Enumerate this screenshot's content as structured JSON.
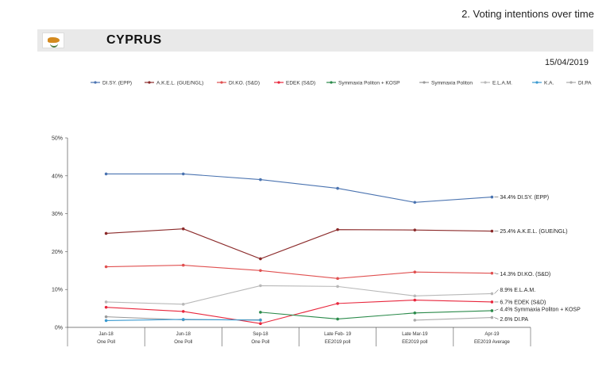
{
  "header": {
    "section_title": "2. Voting intentions over time"
  },
  "country": {
    "name": "CYPRUS",
    "flag_icon": "cyprus-flag-icon"
  },
  "date": "15/04/2019",
  "chart_data": {
    "type": "line",
    "categories": [
      [
        "Jan-18",
        "One Poll"
      ],
      [
        "Jun-18",
        "One Poll"
      ],
      [
        "Sep-18",
        "One Poll"
      ],
      [
        "Late Feb- 19",
        "EE2019 poll"
      ],
      [
        "Late Mar-19",
        "EE2019 poll"
      ],
      [
        "Apr-19",
        "EE2019 Average"
      ]
    ],
    "ylim": [
      0,
      50
    ],
    "yticks": [
      "0%",
      "10%",
      "20%",
      "30%",
      "40%",
      "50%"
    ],
    "series": [
      {
        "name": "DI.SY. (EPP)",
        "color": "#4a73b0",
        "values": [
          40.5,
          40.5,
          39.0,
          36.7,
          33.0,
          34.4
        ],
        "end_label": "34.4% DI.SY. (EPP)"
      },
      {
        "name": "A.K.E.L. (GUE/NGL)",
        "color": "#8b2a2a",
        "values": [
          24.8,
          26.0,
          18.1,
          25.8,
          25.7,
          25.4
        ],
        "end_label": "25.4% A.K.E.L. (GUE/NGL)"
      },
      {
        "name": "DI.KO. (S&D)",
        "color": "#e05050",
        "values": [
          16.0,
          16.4,
          15.0,
          12.9,
          14.6,
          14.3
        ],
        "end_label": "14.3% DI.KO. (S&D)"
      },
      {
        "name": "EDEK (S&D)",
        "color": "#e8263c",
        "values": [
          5.3,
          4.2,
          1.0,
          6.3,
          7.2,
          6.7
        ],
        "end_label": "6.7% EDEK (S&D)"
      },
      {
        "name": "Symmaxia Politon + KOSP",
        "color": "#2a8a4a",
        "values": [
          null,
          null,
          4.0,
          2.2,
          3.8,
          4.4
        ],
        "end_label": "4.4% Symmaxia Politon + KOSP"
      },
      {
        "name": "Symmaxia Politon",
        "color": "#999999",
        "values": [
          2.8,
          2.0,
          2.0,
          null,
          null,
          null
        ],
        "end_label": ""
      },
      {
        "name": "E.L.A.M.",
        "color": "#b8b8b8",
        "values": [
          6.7,
          6.1,
          11.0,
          10.8,
          8.3,
          8.9
        ],
        "end_label": "8.9% E.L.A.M."
      },
      {
        "name": "K.A.",
        "color": "#3a9ad0",
        "values": [
          1.8,
          2.1,
          1.9,
          null,
          null,
          null
        ],
        "end_label": ""
      },
      {
        "name": "DI.PA",
        "color": "#aaaaaa",
        "values": [
          null,
          null,
          null,
          null,
          1.9,
          2.6
        ],
        "end_label": "2.6% DI.PA"
      }
    ],
    "legend": "top"
  }
}
